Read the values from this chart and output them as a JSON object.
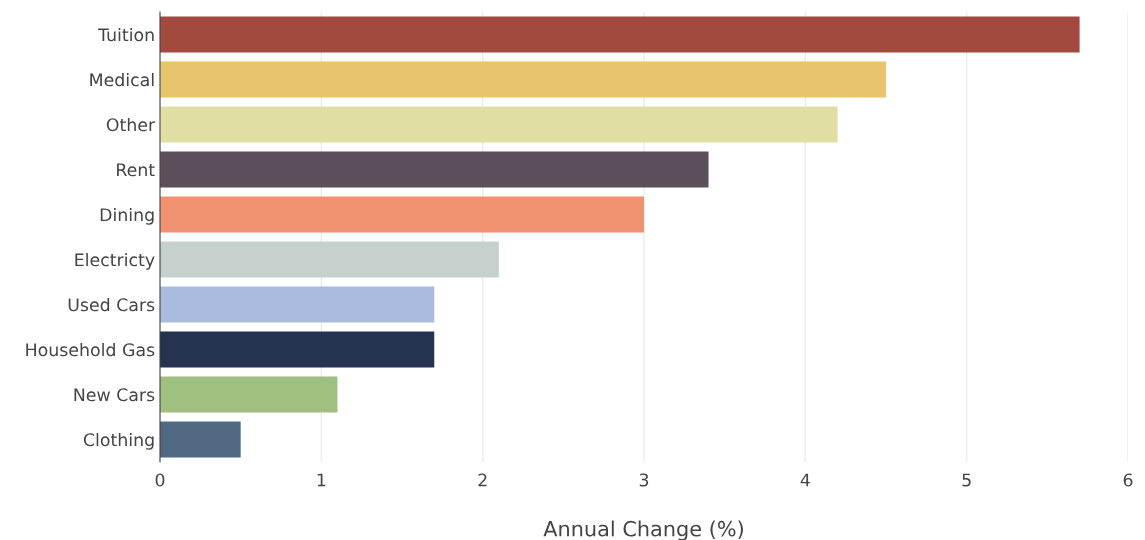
{
  "chart_data": {
    "type": "bar",
    "orientation": "horizontal",
    "xlabel": "Annual Change (%)",
    "categories": [
      "Tuition",
      "Medical",
      "Other",
      "Rent",
      "Dining",
      "Electricty",
      "Used Cars",
      "Household Gas",
      "New Cars",
      "Clothing"
    ],
    "values": [
      5.7,
      4.5,
      4.2,
      3.4,
      3.0,
      2.1,
      1.7,
      1.7,
      1.1,
      0.5
    ],
    "colors": [
      "#a34a3f",
      "#e8c46c",
      "#e0dfa3",
      "#5c4f5c",
      "#f0916f",
      "#c5d1cc",
      "#aabbdd",
      "#253350",
      "#a0c080",
      "#506882"
    ],
    "xlim": [
      0,
      6
    ],
    "xticks": [
      0,
      1,
      2,
      3,
      4,
      5,
      6
    ],
    "grid": "x",
    "legend": false
  }
}
